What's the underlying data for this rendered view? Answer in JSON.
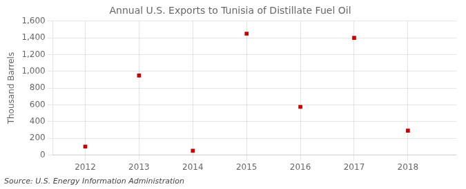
{
  "chart_data": {
    "type": "scatter",
    "title": "Annual U.S. Exports to Tunisia of Distillate Fuel Oil",
    "ylabel": "Thousand Barrels",
    "source": "Source: U.S. Energy Information Administration",
    "x": [
      2012,
      2013,
      2014,
      2015,
      2016,
      2017,
      2018
    ],
    "values": [
      100,
      950,
      50,
      1450,
      575,
      1400,
      290
    ],
    "color": "#cc0000",
    "marker": "square",
    "xlim": [
      2011.4,
      2018.9
    ],
    "xticks": [
      2012,
      2013,
      2014,
      2015,
      2016,
      2017,
      2018
    ],
    "ylim": [
      0,
      1600
    ],
    "yticks": [
      0,
      200,
      400,
      600,
      800,
      {
        "value": 1000,
        "label": "1,000"
      },
      {
        "value": 1200,
        "label": "1,200"
      },
      {
        "value": 1400,
        "label": "1,400"
      },
      {
        "value": 1600,
        "label": "1,600"
      }
    ],
    "grid": true
  }
}
